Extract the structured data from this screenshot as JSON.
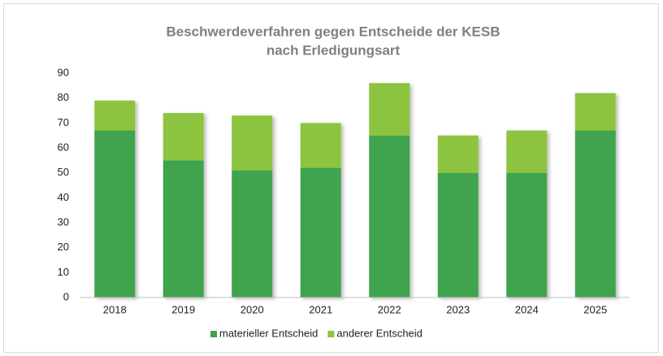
{
  "chart_data": {
    "type": "stacked_bar",
    "title": [
      "Beschwerdeverfahren gegen Entscheide der KESB",
      "nach Erledigungsart"
    ],
    "categories": [
      "2018",
      "2019",
      "2020",
      "2021",
      "2022",
      "2023",
      "2024",
      "2025"
    ],
    "series": [
      {
        "name": "materieller Entscheid",
        "color": "#3fa34d",
        "values": [
          67,
          55,
          51,
          52,
          65,
          50,
          50,
          67
        ]
      },
      {
        "name": "anderer Entscheid",
        "color": "#8cc43f",
        "values": [
          12,
          19,
          22,
          18,
          21,
          15,
          17,
          15
        ]
      }
    ],
    "ylim": [
      0,
      90
    ],
    "yticks": [
      0,
      10,
      20,
      30,
      40,
      50,
      60,
      70,
      80,
      90
    ],
    "grid": false,
    "legend": "bottom"
  }
}
